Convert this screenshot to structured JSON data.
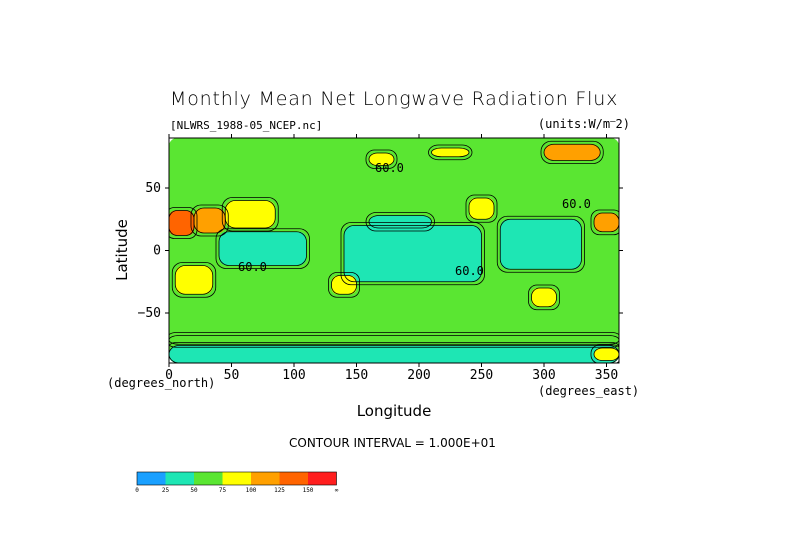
{
  "chart_data": {
    "type": "heatmap",
    "title": "Monthly Mean Net Longwave Radiation Flux",
    "file_label": "[NLWRS_1988-05_NCEP.nc]",
    "units_label": "(units:W/m^2)",
    "xlabel": "Longitude",
    "ylabel": "Latitude",
    "x_unit_label": "(degrees_east)",
    "y_unit_label": "(degrees_north)",
    "xlim": [
      0,
      360
    ],
    "ylim": [
      -90,
      90
    ],
    "x_ticks": [
      0,
      50,
      100,
      150,
      200,
      250,
      300,
      350
    ],
    "y_ticks": [
      50,
      0,
      -50
    ],
    "y_tick_labels": [
      "50",
      "0",
      "−50"
    ],
    "contour_interval_label": "CONTOUR INTERVAL = 1.000E+01",
    "contour_label": "60.0",
    "colorbar": {
      "labels": [
        "0",
        "25",
        "50",
        "75",
        "100",
        "125",
        "150",
        "∞"
      ],
      "colors": [
        "#1aa0ff",
        "#1ee6b4",
        "#5ae632",
        "#ffff00",
        "#ffa000",
        "#ff6400",
        "#ff1e1e"
      ]
    },
    "regions": [
      {
        "lon": [
          0,
          360
        ],
        "lat": [
          -90,
          90
        ],
        "value": 55
      },
      {
        "lon": [
          140,
          250
        ],
        "lat": [
          -25,
          20
        ],
        "value": 35
      },
      {
        "lon": [
          40,
          110
        ],
        "lat": [
          -12,
          15
        ],
        "value": 40
      },
      {
        "lon": [
          265,
          330
        ],
        "lat": [
          -15,
          25
        ],
        "value": 38
      },
      {
        "lon": [
          160,
          210
        ],
        "lat": [
          18,
          28
        ],
        "value": 40
      },
      {
        "lon": [
          0,
          20
        ],
        "lat": [
          12,
          32
        ],
        "value": 130
      },
      {
        "lon": [
          20,
          45
        ],
        "lat": [
          14,
          34
        ],
        "value": 110
      },
      {
        "lon": [
          45,
          85
        ],
        "lat": [
          18,
          40
        ],
        "value": 90
      },
      {
        "lon": [
          340,
          360
        ],
        "lat": [
          15,
          30
        ],
        "value": 120
      },
      {
        "lon": [
          240,
          260
        ],
        "lat": [
          25,
          42
        ],
        "value": 95
      },
      {
        "lon": [
          5,
          35
        ],
        "lat": [
          -35,
          -12
        ],
        "value": 80
      },
      {
        "lon": [
          130,
          150
        ],
        "lat": [
          -35,
          -20
        ],
        "value": 75
      },
      {
        "lon": [
          290,
          310
        ],
        "lat": [
          -45,
          -30
        ],
        "value": 85
      },
      {
        "lon": [
          160,
          180
        ],
        "lat": [
          68,
          78
        ],
        "value": 80
      },
      {
        "lon": [
          210,
          240
        ],
        "lat": [
          75,
          82
        ],
        "value": 80
      },
      {
        "lon": [
          300,
          345
        ],
        "lat": [
          72,
          85
        ],
        "value": 115
      },
      {
        "lon": [
          0,
          360
        ],
        "lat": [
          -75,
          -68
        ],
        "value": 60
      },
      {
        "lon": [
          0,
          360
        ],
        "lat": [
          -90,
          -76
        ],
        "value": 40
      },
      {
        "lon": [
          340,
          360
        ],
        "lat": [
          -88,
          -78
        ],
        "value": 80
      }
    ]
  }
}
